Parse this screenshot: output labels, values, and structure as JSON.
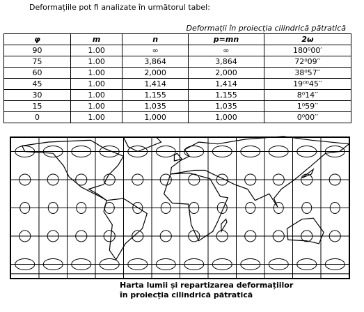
{
  "intro": "Deformațiile pot fi analizate în următorul tabel:",
  "table": {
    "caption": "Deformații în proiecția cilindrică pătratică",
    "header": [
      "φ",
      "m",
      "n",
      "p=mn",
      "2ω"
    ],
    "rows": [
      [
        "90",
        "1.00",
        "∞",
        "∞",
        "180⁰00′"
      ],
      [
        "75",
        "1.00",
        "3,864",
        "3,864",
        "72⁰09′′"
      ],
      [
        "60",
        "1.00",
        "2,000",
        "2,000",
        "38⁰57′′"
      ],
      [
        "45",
        "1.00",
        "1,414",
        "1,414",
        "19⁰⁰45′′"
      ],
      [
        "30",
        "1.00",
        "1,155",
        "1,155",
        "8⁰14′′"
      ],
      [
        "15",
        "1.00",
        "1,035",
        "1,035",
        "1⁰59′′"
      ],
      [
        "0",
        "1.00",
        "1,000",
        "1,000",
        "0⁰00′′"
      ]
    ]
  },
  "map_caption": [
    "Harta lumii și repartizarea deformațiilor",
    "în proiecția cilindrică pătratică"
  ]
}
